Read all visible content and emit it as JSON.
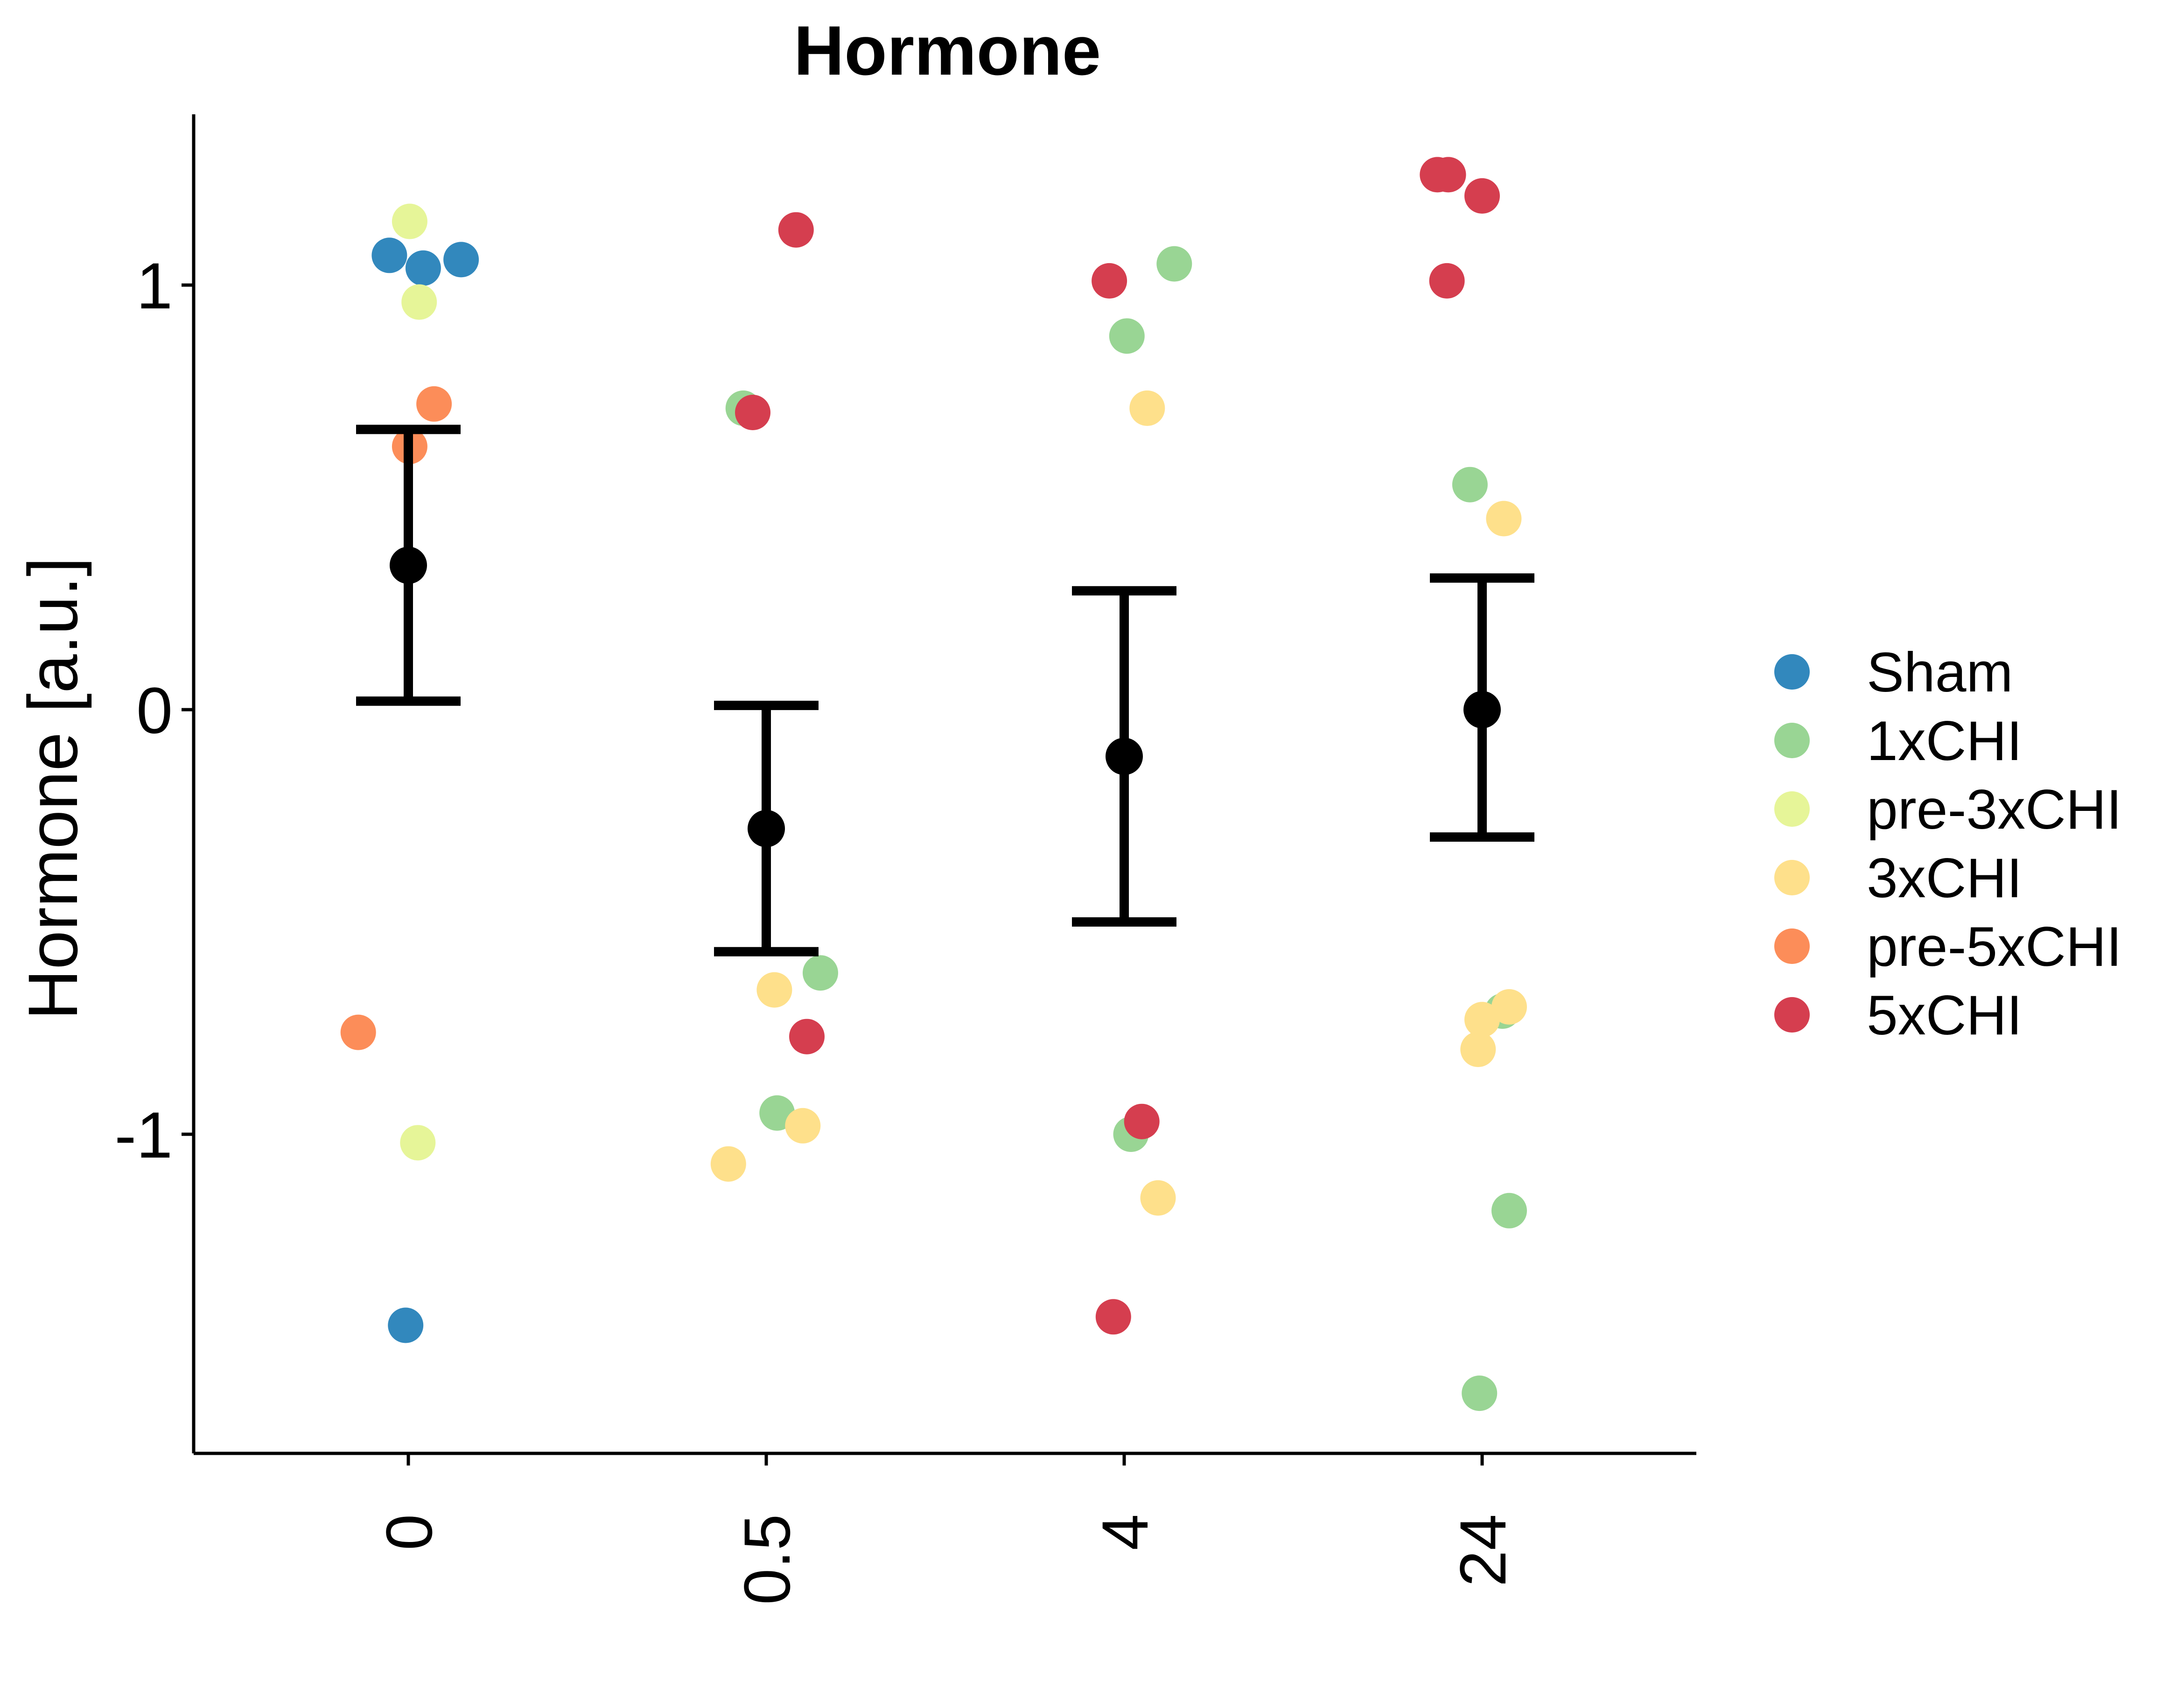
{
  "chart_data": {
    "type": "scatter",
    "title": "Hormone",
    "xlabel": "",
    "ylabel": "Hormone [a.u.]",
    "categories": [
      "0",
      "0.5",
      "4",
      "24"
    ],
    "yticks": [
      -1,
      0,
      1
    ],
    "ytick_labels": [
      "-1",
      "0",
      "1"
    ],
    "ylim": [
      -1.75,
      1.4
    ],
    "grid": false,
    "legend": {
      "position": "right",
      "entries": [
        {
          "name": "Sham",
          "color": "#3288BD"
        },
        {
          "name": "1xCHI",
          "color": "#99D594"
        },
        {
          "name": "pre-3xCHI",
          "color": "#E6F598"
        },
        {
          "name": "3xCHI",
          "color": "#FEE08B"
        },
        {
          "name": "pre-5xCHI",
          "color": "#FC8D59"
        },
        {
          "name": "5xCHI",
          "color": "#D53E4F"
        }
      ]
    },
    "points": [
      {
        "group": "Sham",
        "x": 0,
        "jitter": -0.14,
        "y": 1.07
      },
      {
        "group": "Sham",
        "x": 0,
        "jitter": 0.11,
        "y": 1.04
      },
      {
        "group": "Sham",
        "x": 0,
        "jitter": 0.39,
        "y": 1.06
      },
      {
        "group": "Sham",
        "x": 0,
        "jitter": -0.02,
        "y": -1.45
      },
      {
        "group": "pre-3xCHI",
        "x": 0,
        "jitter": 0.01,
        "y": 1.15
      },
      {
        "group": "pre-3xCHI",
        "x": 0,
        "jitter": 0.08,
        "y": 0.96
      },
      {
        "group": "pre-3xCHI",
        "x": 0,
        "jitter": 0.07,
        "y": -1.02
      },
      {
        "group": "pre-5xCHI",
        "x": 0,
        "jitter": 0.19,
        "y": 0.72
      },
      {
        "group": "pre-5xCHI",
        "x": 0,
        "jitter": 0.01,
        "y": 0.62
      },
      {
        "group": "pre-5xCHI",
        "x": 0,
        "jitter": -0.37,
        "y": -0.76
      },
      {
        "group": "1xCHI",
        "x": 1,
        "jitter": -0.17,
        "y": 0.71
      },
      {
        "group": "1xCHI",
        "x": 1,
        "jitter": 0.4,
        "y": -0.62
      },
      {
        "group": "1xCHI",
        "x": 1,
        "jitter": 0.08,
        "y": -0.95
      },
      {
        "group": "3xCHI",
        "x": 1,
        "jitter": 0.06,
        "y": -0.66
      },
      {
        "group": "3xCHI",
        "x": 1,
        "jitter": 0.27,
        "y": -0.98
      },
      {
        "group": "3xCHI",
        "x": 1,
        "jitter": -0.28,
        "y": -1.07
      },
      {
        "group": "5xCHI",
        "x": 1,
        "jitter": -0.1,
        "y": 0.7
      },
      {
        "group": "5xCHI",
        "x": 1,
        "jitter": 0.22,
        "y": 1.13
      },
      {
        "group": "5xCHI",
        "x": 1,
        "jitter": 0.3,
        "y": -0.77
      },
      {
        "group": "1xCHI",
        "x": 2,
        "jitter": 0.37,
        "y": 1.05
      },
      {
        "group": "1xCHI",
        "x": 2,
        "jitter": 0.02,
        "y": 0.88
      },
      {
        "group": "1xCHI",
        "x": 2,
        "jitter": 0.05,
        "y": -1.0
      },
      {
        "group": "3xCHI",
        "x": 2,
        "jitter": 0.17,
        "y": 0.71
      },
      {
        "group": "3xCHI",
        "x": 2,
        "jitter": 0.25,
        "y": -1.15
      },
      {
        "group": "5xCHI",
        "x": 2,
        "jitter": -0.11,
        "y": 1.01
      },
      {
        "group": "5xCHI",
        "x": 2,
        "jitter": 0.13,
        "y": -0.97
      },
      {
        "group": "5xCHI",
        "x": 2,
        "jitter": -0.08,
        "y": -1.43
      },
      {
        "group": "1xCHI",
        "x": 3,
        "jitter": -0.09,
        "y": 0.53
      },
      {
        "group": "1xCHI",
        "x": 3,
        "jitter": 0.15,
        "y": -0.71
      },
      {
        "group": "1xCHI",
        "x": 3,
        "jitter": 0.2,
        "y": -1.18
      },
      {
        "group": "1xCHI",
        "x": 3,
        "jitter": -0.02,
        "y": -1.61
      },
      {
        "group": "3xCHI",
        "x": 3,
        "jitter": 0.16,
        "y": 0.45
      },
      {
        "group": "3xCHI",
        "x": 3,
        "jitter": 0.2,
        "y": -0.7
      },
      {
        "group": "3xCHI",
        "x": 3,
        "jitter": 0.0,
        "y": -0.73
      },
      {
        "group": "3xCHI",
        "x": 3,
        "jitter": -0.03,
        "y": -0.8
      },
      {
        "group": "5xCHI",
        "x": 3,
        "jitter": -0.33,
        "y": 1.26
      },
      {
        "group": "5xCHI",
        "x": 3,
        "jitter": -0.25,
        "y": 1.26
      },
      {
        "group": "5xCHI",
        "x": 3,
        "jitter": -0.26,
        "y": 1.01
      },
      {
        "group": "5xCHI",
        "x": 3,
        "jitter": 0.0,
        "y": 1.21
      }
    ],
    "summary": [
      {
        "category": "0",
        "mean": 0.34,
        "lower": 0.02,
        "upper": 0.66
      },
      {
        "category": "0.5",
        "mean": -0.28,
        "lower": -0.57,
        "upper": 0.01
      },
      {
        "category": "4",
        "mean": -0.11,
        "lower": -0.5,
        "upper": 0.28
      },
      {
        "category": "24",
        "mean": 0.0,
        "lower": -0.3,
        "upper": 0.31
      }
    ]
  }
}
